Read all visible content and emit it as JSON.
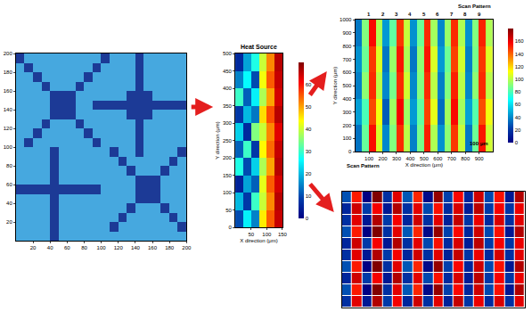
{
  "chart_data": [
    {
      "type": "heatmap",
      "xlim": [
        0,
        200
      ],
      "ylim": [
        0,
        200
      ],
      "xticks": [
        20,
        40,
        60,
        80,
        100,
        120,
        140,
        160,
        180,
        200
      ],
      "yticks": [
        20,
        40,
        60,
        80,
        100,
        120,
        140,
        160,
        180,
        200
      ],
      "z": [
        [
          0,
          0,
          0,
          0,
          1,
          0,
          0,
          0,
          0,
          0,
          0,
          0,
          0,
          0,
          0,
          0,
          0,
          0,
          0,
          0
        ],
        [
          0,
          0,
          0,
          0,
          1,
          0,
          0,
          0,
          0,
          0,
          0,
          1,
          0,
          0,
          0,
          0,
          0,
          0,
          0,
          1
        ],
        [
          0,
          0,
          0,
          0,
          1,
          0,
          0,
          0,
          0,
          0,
          0,
          0,
          1,
          0,
          0,
          0,
          0,
          0,
          1,
          0
        ],
        [
          0,
          0,
          0,
          0,
          1,
          0,
          0,
          0,
          0,
          0,
          0,
          0,
          0,
          1,
          0,
          0,
          0,
          1,
          0,
          0
        ],
        [
          0,
          0,
          0,
          0,
          1,
          0,
          0,
          0,
          0,
          0,
          0,
          0,
          0,
          0,
          1,
          1,
          1,
          0,
          0,
          0
        ],
        [
          1,
          1,
          1,
          1,
          1,
          1,
          1,
          1,
          1,
          1,
          0,
          0,
          0,
          0,
          1,
          1,
          1,
          0,
          0,
          0
        ],
        [
          0,
          0,
          0,
          0,
          1,
          0,
          0,
          0,
          0,
          0,
          0,
          0,
          0,
          0,
          1,
          1,
          1,
          0,
          0,
          0
        ],
        [
          0,
          0,
          0,
          0,
          1,
          0,
          0,
          0,
          0,
          0,
          0,
          0,
          0,
          1,
          0,
          0,
          0,
          1,
          0,
          0
        ],
        [
          0,
          0,
          0,
          0,
          1,
          0,
          0,
          0,
          0,
          0,
          0,
          0,
          1,
          0,
          0,
          0,
          0,
          0,
          1,
          0
        ],
        [
          0,
          0,
          0,
          0,
          1,
          0,
          0,
          0,
          0,
          0,
          0,
          1,
          0,
          0,
          1,
          0,
          0,
          0,
          0,
          1
        ],
        [
          0,
          1,
          0,
          0,
          0,
          0,
          0,
          0,
          0,
          1,
          0,
          0,
          0,
          0,
          1,
          0,
          0,
          0,
          0,
          0
        ],
        [
          0,
          0,
          1,
          0,
          0,
          0,
          0,
          0,
          1,
          0,
          0,
          0,
          0,
          0,
          1,
          0,
          0,
          0,
          0,
          0
        ],
        [
          0,
          0,
          0,
          1,
          0,
          0,
          0,
          1,
          0,
          0,
          0,
          0,
          0,
          0,
          1,
          0,
          0,
          0,
          0,
          0
        ],
        [
          0,
          0,
          0,
          0,
          1,
          1,
          1,
          0,
          0,
          0,
          0,
          0,
          0,
          1,
          1,
          1,
          0,
          0,
          0,
          0
        ],
        [
          0,
          0,
          0,
          0,
          1,
          1,
          1,
          0,
          0,
          1,
          1,
          1,
          1,
          1,
          1,
          1,
          1,
          1,
          1,
          1
        ],
        [
          0,
          0,
          0,
          0,
          1,
          1,
          1,
          0,
          0,
          0,
          0,
          0,
          0,
          1,
          1,
          1,
          0,
          0,
          0,
          0
        ],
        [
          0,
          0,
          0,
          1,
          0,
          0,
          0,
          1,
          0,
          0,
          0,
          0,
          0,
          0,
          1,
          0,
          0,
          0,
          0,
          0
        ],
        [
          0,
          0,
          1,
          0,
          0,
          0,
          0,
          0,
          1,
          0,
          0,
          0,
          0,
          0,
          1,
          0,
          0,
          0,
          0,
          0
        ],
        [
          0,
          1,
          0,
          0,
          0,
          0,
          0,
          0,
          0,
          1,
          0,
          0,
          0,
          0,
          1,
          0,
          0,
          0,
          0,
          0
        ],
        [
          1,
          0,
          0,
          0,
          0,
          0,
          0,
          0,
          0,
          0,
          1,
          0,
          0,
          0,
          1,
          0,
          0,
          0,
          0,
          0
        ]
      ]
    },
    {
      "type": "heatmap",
      "title": "Heat Source",
      "x_label": "X direction (μm)",
      "y_label": "Y direction (μm)",
      "xlim": [
        0,
        150
      ],
      "ylim": [
        0,
        500
      ],
      "xticks": [
        50,
        100,
        150
      ],
      "yticks": [
        0,
        50,
        100,
        150,
        200,
        250,
        300,
        350,
        400,
        450,
        500
      ],
      "z": [
        [
          10,
          25,
          15,
          45,
          55,
          65
        ],
        [
          20,
          8,
          30,
          40,
          52,
          66
        ],
        [
          5,
          18,
          12,
          42,
          55,
          64
        ],
        [
          28,
          10,
          22,
          38,
          50,
          66
        ],
        [
          12,
          30,
          8,
          44,
          54,
          65
        ],
        [
          22,
          6,
          35,
          40,
          52,
          63
        ],
        [
          8,
          20,
          14,
          46,
          56,
          66
        ],
        [
          30,
          12,
          25,
          38,
          50,
          64
        ],
        [
          15,
          26,
          10,
          43,
          55,
          65
        ],
        [
          6,
          18,
          28,
          40,
          52,
          66
        ]
      ],
      "colorbar": {
        "range": [
          0,
          70
        ],
        "ticks": [
          0,
          10,
          20,
          30,
          40,
          50,
          60
        ]
      }
    },
    {
      "type": "heatmap",
      "title": "Scan Pattern",
      "x_label": "X direction (μm)",
      "y_label": "Y direction (μm)",
      "xlim": [
        0,
        1000
      ],
      "ylim": [
        0,
        1000
      ],
      "xticks": [
        100,
        200,
        300,
        400,
        500,
        600,
        700,
        800,
        900
      ],
      "yticks": [
        0,
        100,
        200,
        300,
        400,
        500,
        600,
        700,
        800,
        900,
        1000
      ],
      "annotations": [
        {
          "text": "Scan Pattern"
        },
        {
          "text": "100 μm"
        }
      ],
      "scan_tracks": [
        {
          "label": "1",
          "x": 100
        },
        {
          "label": "2",
          "x": 200
        },
        {
          "label": "3",
          "x": 300
        },
        {
          "label": "4",
          "x": 400
        },
        {
          "label": "5",
          "x": 500
        },
        {
          "label": "6",
          "x": 600
        },
        {
          "label": "7",
          "x": 700
        },
        {
          "label": "8",
          "x": 800
        },
        {
          "label": "9",
          "x": 900
        }
      ],
      "z": [
        [
          35,
          85,
          155,
          105,
          40,
          90,
          150,
          100,
          38,
          88,
          152,
          98,
          42,
          92,
          148,
          102,
          36,
          86,
          154,
          104
        ],
        [
          45,
          80,
          145,
          110,
          30,
          95,
          158,
          95,
          44,
          84,
          146,
          108,
          34,
          96,
          156,
          96,
          46,
          82,
          144,
          110
        ],
        [
          38,
          92,
          150,
          100,
          40,
          88,
          150,
          104,
          40,
          90,
          150,
          100,
          38,
          90,
          152,
          100,
          40,
          92,
          150,
          100
        ],
        [
          42,
          86,
          148,
          106,
          36,
          94,
          154,
          98,
          36,
          92,
          154,
          106,
          44,
          86,
          146,
          104,
          38,
          88,
          148,
          106
        ],
        [
          36,
          90,
          156,
          98,
          44,
          84,
          148,
          102,
          42,
          86,
          150,
          96,
          40,
          94,
          150,
          98,
          42,
          90,
          152,
          98
        ]
      ],
      "colorbar": {
        "range": [
          0,
          180
        ],
        "ticks": [
          0,
          20,
          40,
          60,
          80,
          100,
          120,
          140,
          160
        ]
      }
    },
    {
      "type": "heatmap",
      "tick_labels": false,
      "xlim": [
        0,
        18
      ],
      "ylim": [
        0,
        10
      ],
      "z": [
        [
          60,
          140,
          55,
          145,
          62,
          138,
          58,
          142,
          60,
          140,
          57,
          143,
          61,
          139,
          59,
          141,
          60,
          140
        ],
        [
          65,
          135,
          50,
          150,
          60,
          140,
          66,
          134,
          52,
          148,
          63,
          137,
          58,
          142,
          64,
          136,
          55,
          145
        ],
        [
          58,
          142,
          62,
          138,
          55,
          145,
          60,
          140,
          64,
          136,
          59,
          141,
          56,
          144,
          62,
          138,
          61,
          139
        ],
        [
          65,
          135,
          50,
          150,
          60,
          140,
          66,
          134,
          52,
          148,
          63,
          137,
          58,
          142,
          64,
          136,
          55,
          145
        ],
        [
          60,
          140,
          55,
          145,
          62,
          138,
          58,
          142,
          60,
          140,
          57,
          143,
          61,
          139,
          59,
          141,
          60,
          140
        ],
        [
          58,
          142,
          62,
          138,
          55,
          145,
          60,
          140,
          64,
          136,
          59,
          141,
          56,
          144,
          62,
          138,
          61,
          139
        ],
        [
          65,
          135,
          50,
          150,
          60,
          140,
          66,
          134,
          52,
          148,
          63,
          137,
          58,
          142,
          64,
          136,
          55,
          145
        ],
        [
          60,
          140,
          55,
          145,
          62,
          138,
          58,
          142,
          60,
          140,
          57,
          143,
          61,
          139,
          59,
          141,
          60,
          140
        ],
        [
          58,
          142,
          62,
          138,
          55,
          145,
          60,
          140,
          64,
          136,
          59,
          141,
          56,
          144,
          62,
          138,
          61,
          139
        ],
        [
          65,
          135,
          50,
          150,
          60,
          140,
          66,
          134,
          52,
          148,
          63,
          137,
          58,
          142,
          64,
          136,
          55,
          145
        ]
      ]
    }
  ]
}
